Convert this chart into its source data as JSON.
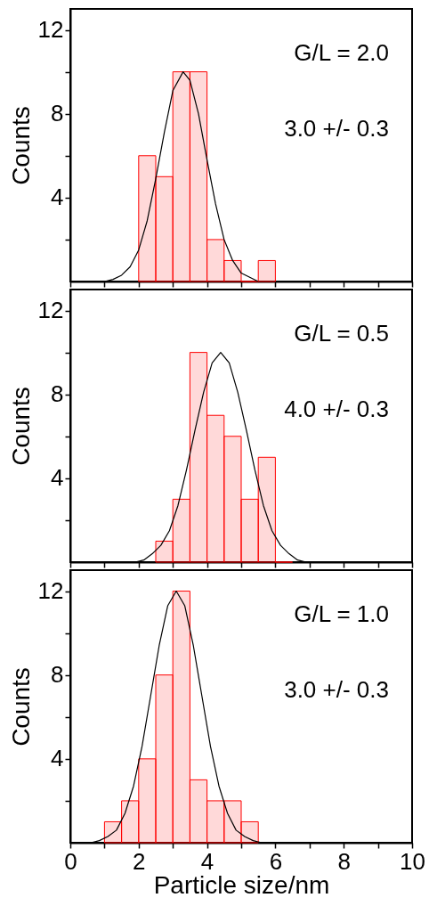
{
  "chart_data": [
    {
      "type": "histogram",
      "ylabel": "Counts",
      "annotations": [
        "G/L = 2.0",
        "3.0 +/- 0.3"
      ],
      "xlim": [
        0,
        10
      ],
      "xticks": [
        0,
        {
          "value": 1,
          "label": null
        },
        2,
        {
          "value": 3,
          "label": null
        },
        4,
        {
          "value": 5,
          "label": null
        },
        6,
        {
          "value": 7,
          "label": null
        },
        8,
        {
          "value": 9,
          "label": null
        },
        10
      ],
      "ylim": [
        0,
        13
      ],
      "yticks": [
        {
          "value": 2,
          "label": null
        },
        4,
        {
          "value": 6,
          "label": null
        },
        8,
        {
          "value": 10,
          "label": null
        },
        12
      ],
      "tick_labels": "y",
      "grid": false,
      "series": [
        {
          "type": "histogram",
          "color": "#ff0000",
          "bins": [
            2.0,
            2.5,
            3.0,
            3.5,
            4.0,
            4.5,
            5.0,
            5.5,
            6.0
          ],
          "values": [
            6,
            5,
            10,
            10,
            2,
            1,
            0,
            1
          ]
        },
        {
          "type": "line",
          "color": "#000000",
          "x": [
            1.0,
            1.25,
            1.5,
            1.75,
            2.0,
            2.25,
            2.5,
            2.75,
            3.0,
            3.3,
            3.5,
            3.75,
            4.0,
            4.25,
            4.5,
            4.75,
            5.0,
            5.25,
            5.5
          ],
          "values": [
            0.0,
            0.1,
            0.3,
            0.7,
            1.5,
            2.9,
            4.9,
            7.1,
            9.1,
            10.0,
            9.6,
            8.0,
            5.8,
            3.7,
            2.0,
            1.0,
            0.4,
            0.2,
            0.0
          ]
        }
      ]
    },
    {
      "type": "histogram",
      "ylabel": "Counts",
      "annotations": [
        "G/L = 0.5",
        "4.0 +/- 0.3"
      ],
      "xlim": [
        0,
        10
      ],
      "xticks": [
        0,
        {
          "value": 1,
          "label": null
        },
        2,
        {
          "value": 3,
          "label": null
        },
        4,
        {
          "value": 5,
          "label": null
        },
        6,
        {
          "value": 7,
          "label": null
        },
        8,
        {
          "value": 9,
          "label": null
        },
        10
      ],
      "ylim": [
        0,
        13
      ],
      "yticks": [
        {
          "value": 2,
          "label": null
        },
        4,
        {
          "value": 6,
          "label": null
        },
        8,
        {
          "value": 10,
          "label": null
        },
        12
      ],
      "tick_labels": "y",
      "grid": false,
      "series": [
        {
          "type": "histogram",
          "color": "#ff0000",
          "bins": [
            2.5,
            3.0,
            3.5,
            4.0,
            4.5,
            5.0,
            5.5,
            6.0,
            6.5
          ],
          "values": [
            1,
            3,
            10,
            7,
            6,
            3,
            5,
            0
          ]
        },
        {
          "type": "line",
          "color": "#000000",
          "x": [
            1.9,
            2.15,
            2.4,
            2.65,
            2.9,
            3.15,
            3.4,
            3.65,
            3.9,
            4.15,
            4.4,
            4.65,
            4.9,
            5.15,
            5.4,
            5.65,
            5.9,
            6.15,
            6.4,
            6.65,
            6.9
          ],
          "values": [
            0.0,
            0.1,
            0.4,
            0.8,
            1.5,
            2.7,
            4.4,
            6.3,
            8.1,
            9.5,
            10.0,
            9.5,
            8.1,
            6.3,
            4.4,
            2.7,
            1.5,
            0.8,
            0.4,
            0.1,
            0.0
          ]
        }
      ]
    },
    {
      "type": "histogram",
      "xlabel": "Particle size/nm",
      "ylabel": "Counts",
      "annotations": [
        "G/L = 1.0",
        "3.0 +/- 0.3"
      ],
      "xlim": [
        0,
        10
      ],
      "xticks": [
        0,
        {
          "value": 1,
          "label": null
        },
        2,
        {
          "value": 3,
          "label": null
        },
        4,
        {
          "value": 5,
          "label": null
        },
        6,
        {
          "value": 7,
          "label": null
        },
        8,
        {
          "value": 9,
          "label": null
        },
        10
      ],
      "ylim": [
        0,
        13
      ],
      "yticks": [
        {
          "value": 2,
          "label": null
        },
        4,
        {
          "value": 6,
          "label": null
        },
        8,
        {
          "value": 10,
          "label": null
        },
        12
      ],
      "grid": false,
      "series": [
        {
          "type": "histogram",
          "color": "#ff0000",
          "bins": [
            1.0,
            1.5,
            2.0,
            2.5,
            3.0,
            3.5,
            4.0,
            4.5,
            5.0,
            5.5
          ],
          "values": [
            1,
            2,
            4,
            8,
            12,
            3,
            2,
            2,
            1
          ]
        },
        {
          "type": "line",
          "color": "#000000",
          "x": [
            0.6,
            0.85,
            1.1,
            1.35,
            1.6,
            1.85,
            2.1,
            2.35,
            2.6,
            2.85,
            3.1,
            3.35,
            3.6,
            3.85,
            4.1,
            4.35,
            4.6,
            4.85,
            5.1,
            5.35,
            5.6
          ],
          "values": [
            0.0,
            0.1,
            0.3,
            0.6,
            1.4,
            2.7,
            4.6,
            7.0,
            9.4,
            11.3,
            12.0,
            11.3,
            9.4,
            7.0,
            4.6,
            2.7,
            1.4,
            0.6,
            0.3,
            0.1,
            0.0
          ]
        }
      ]
    }
  ]
}
